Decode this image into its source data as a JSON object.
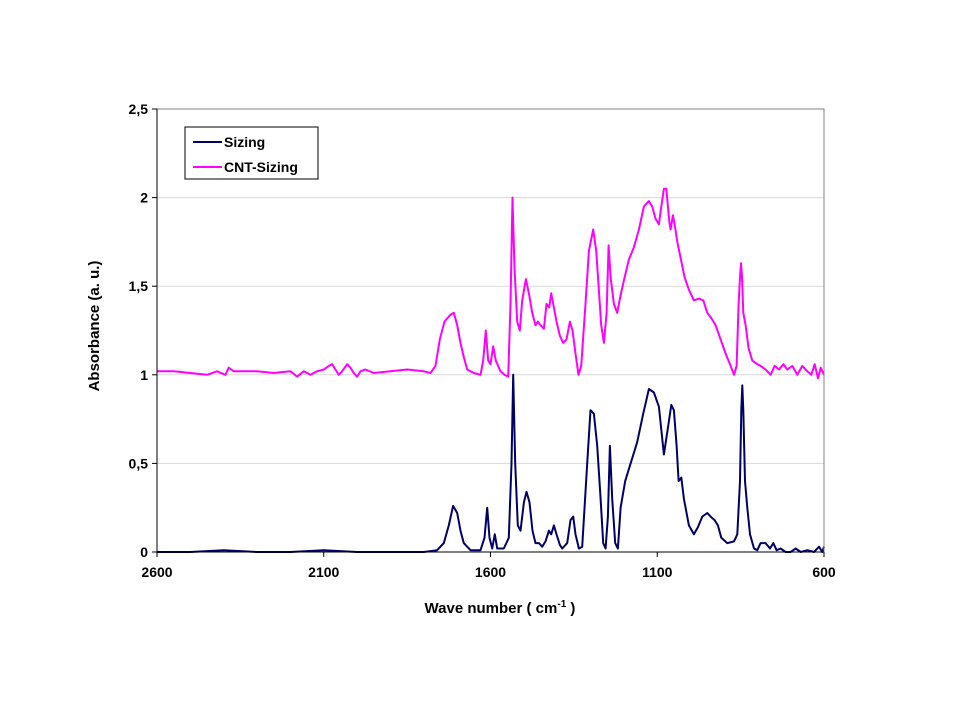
{
  "chart_data": {
    "type": "line",
    "xlabel": "Wave number ( cm-1 )",
    "xlabel_main": "Wave number ( cm",
    "xlabel_sup": "-1",
    "xlabel_end": " )",
    "ylabel": "Absorbance (a. u.)",
    "xlim": [
      2600,
      600
    ],
    "x_reversed": true,
    "ylim": [
      0,
      2.5
    ],
    "x_ticks": [
      2600,
      2100,
      1600,
      1100,
      600
    ],
    "x_tick_labels": [
      "2600",
      "2100",
      "1600",
      "1100",
      "600"
    ],
    "y_ticks": [
      0,
      0.5,
      1,
      1.5,
      2,
      2.5
    ],
    "y_tick_labels": [
      "0",
      "0,5",
      "1",
      "1,5",
      "2",
      "2,5"
    ],
    "grid": "horizontal",
    "legend_position": "top-left",
    "series": [
      {
        "name": "Sizing",
        "color": "#000066",
        "points": [
          [
            2600,
            0.0
          ],
          [
            2500,
            0.0
          ],
          [
            2400,
            0.01
          ],
          [
            2300,
            0.0
          ],
          [
            2200,
            0.0
          ],
          [
            2100,
            0.01
          ],
          [
            2000,
            0.0
          ],
          [
            1900,
            0.0
          ],
          [
            1800,
            0.0
          ],
          [
            1760,
            0.01
          ],
          [
            1740,
            0.05
          ],
          [
            1725,
            0.15
          ],
          [
            1712,
            0.26
          ],
          [
            1700,
            0.22
          ],
          [
            1690,
            0.12
          ],
          [
            1680,
            0.05
          ],
          [
            1660,
            0.01
          ],
          [
            1630,
            0.01
          ],
          [
            1618,
            0.08
          ],
          [
            1610,
            0.25
          ],
          [
            1603,
            0.08
          ],
          [
            1595,
            0.02
          ],
          [
            1587,
            0.1
          ],
          [
            1580,
            0.02
          ],
          [
            1560,
            0.02
          ],
          [
            1545,
            0.08
          ],
          [
            1537,
            0.5
          ],
          [
            1532,
            1.0
          ],
          [
            1526,
            0.5
          ],
          [
            1518,
            0.15
          ],
          [
            1510,
            0.12
          ],
          [
            1500,
            0.28
          ],
          [
            1492,
            0.34
          ],
          [
            1483,
            0.28
          ],
          [
            1474,
            0.12
          ],
          [
            1465,
            0.05
          ],
          [
            1455,
            0.05
          ],
          [
            1445,
            0.03
          ],
          [
            1435,
            0.06
          ],
          [
            1425,
            0.12
          ],
          [
            1418,
            0.1
          ],
          [
            1410,
            0.15
          ],
          [
            1402,
            0.1
          ],
          [
            1392,
            0.04
          ],
          [
            1385,
            0.02
          ],
          [
            1370,
            0.05
          ],
          [
            1360,
            0.18
          ],
          [
            1352,
            0.2
          ],
          [
            1345,
            0.1
          ],
          [
            1335,
            0.02
          ],
          [
            1325,
            0.03
          ],
          [
            1310,
            0.5
          ],
          [
            1300,
            0.8
          ],
          [
            1290,
            0.78
          ],
          [
            1280,
            0.6
          ],
          [
            1270,
            0.3
          ],
          [
            1262,
            0.05
          ],
          [
            1255,
            0.02
          ],
          [
            1248,
            0.2
          ],
          [
            1242,
            0.6
          ],
          [
            1235,
            0.3
          ],
          [
            1226,
            0.05
          ],
          [
            1218,
            0.02
          ],
          [
            1210,
            0.25
          ],
          [
            1196,
            0.4
          ],
          [
            1180,
            0.5
          ],
          [
            1160,
            0.62
          ],
          [
            1142,
            0.78
          ],
          [
            1125,
            0.92
          ],
          [
            1110,
            0.9
          ],
          [
            1095,
            0.82
          ],
          [
            1080,
            0.55
          ],
          [
            1068,
            0.7
          ],
          [
            1058,
            0.83
          ],
          [
            1050,
            0.8
          ],
          [
            1042,
            0.6
          ],
          [
            1036,
            0.4
          ],
          [
            1028,
            0.42
          ],
          [
            1020,
            0.3
          ],
          [
            1005,
            0.15
          ],
          [
            990,
            0.1
          ],
          [
            978,
            0.14
          ],
          [
            965,
            0.2
          ],
          [
            950,
            0.22
          ],
          [
            940,
            0.2
          ],
          [
            928,
            0.18
          ],
          [
            918,
            0.15
          ],
          [
            908,
            0.08
          ],
          [
            890,
            0.05
          ],
          [
            870,
            0.06
          ],
          [
            860,
            0.1
          ],
          [
            852,
            0.4
          ],
          [
            848,
            0.8
          ],
          [
            845,
            0.94
          ],
          [
            842,
            0.8
          ],
          [
            837,
            0.4
          ],
          [
            830,
            0.25
          ],
          [
            822,
            0.1
          ],
          [
            810,
            0.02
          ],
          [
            800,
            0.01
          ],
          [
            790,
            0.05
          ],
          [
            775,
            0.05
          ],
          [
            762,
            0.02
          ],
          [
            752,
            0.05
          ],
          [
            742,
            0.01
          ],
          [
            730,
            0.02
          ],
          [
            715,
            0.0
          ],
          [
            700,
            0.0
          ],
          [
            685,
            0.02
          ],
          [
            670,
            0.0
          ],
          [
            650,
            0.01
          ],
          [
            630,
            0.0
          ],
          [
            615,
            0.03
          ],
          [
            605,
            0.0
          ],
          [
            600,
            0.03
          ]
        ]
      },
      {
        "name": "CNT-Sizing",
        "color": "#ff00ff",
        "points": [
          [
            2600,
            1.02
          ],
          [
            2550,
            1.02
          ],
          [
            2500,
            1.01
          ],
          [
            2450,
            1.0
          ],
          [
            2420,
            1.02
          ],
          [
            2395,
            1.0
          ],
          [
            2385,
            1.04
          ],
          [
            2370,
            1.02
          ],
          [
            2300,
            1.02
          ],
          [
            2250,
            1.01
          ],
          [
            2200,
            1.02
          ],
          [
            2180,
            0.99
          ],
          [
            2160,
            1.02
          ],
          [
            2140,
            1.0
          ],
          [
            2120,
            1.02
          ],
          [
            2100,
            1.03
          ],
          [
            2085,
            1.05
          ],
          [
            2075,
            1.06
          ],
          [
            2065,
            1.03
          ],
          [
            2055,
            1.0
          ],
          [
            2045,
            1.02
          ],
          [
            2030,
            1.06
          ],
          [
            2020,
            1.04
          ],
          [
            2010,
            1.01
          ],
          [
            2000,
            0.99
          ],
          [
            1990,
            1.02
          ],
          [
            1975,
            1.03
          ],
          [
            1950,
            1.01
          ],
          [
            1900,
            1.02
          ],
          [
            1850,
            1.03
          ],
          [
            1800,
            1.02
          ],
          [
            1780,
            1.01
          ],
          [
            1765,
            1.05
          ],
          [
            1752,
            1.2
          ],
          [
            1738,
            1.3
          ],
          [
            1720,
            1.34
          ],
          [
            1710,
            1.35
          ],
          [
            1700,
            1.28
          ],
          [
            1690,
            1.18
          ],
          [
            1680,
            1.1
          ],
          [
            1670,
            1.03
          ],
          [
            1650,
            1.01
          ],
          [
            1630,
            1.0
          ],
          [
            1622,
            1.08
          ],
          [
            1614,
            1.25
          ],
          [
            1607,
            1.08
          ],
          [
            1600,
            1.06
          ],
          [
            1592,
            1.16
          ],
          [
            1584,
            1.08
          ],
          [
            1570,
            1.02
          ],
          [
            1558,
            1.0
          ],
          [
            1547,
            0.99
          ],
          [
            1540,
            1.4
          ],
          [
            1534,
            2.0
          ],
          [
            1528,
            1.6
          ],
          [
            1520,
            1.3
          ],
          [
            1512,
            1.25
          ],
          [
            1505,
            1.42
          ],
          [
            1494,
            1.54
          ],
          [
            1484,
            1.45
          ],
          [
            1475,
            1.35
          ],
          [
            1465,
            1.28
          ],
          [
            1458,
            1.3
          ],
          [
            1450,
            1.28
          ],
          [
            1440,
            1.26
          ],
          [
            1432,
            1.4
          ],
          [
            1424,
            1.38
          ],
          [
            1418,
            1.46
          ],
          [
            1410,
            1.38
          ],
          [
            1402,
            1.3
          ],
          [
            1392,
            1.22
          ],
          [
            1382,
            1.18
          ],
          [
            1372,
            1.2
          ],
          [
            1362,
            1.3
          ],
          [
            1354,
            1.25
          ],
          [
            1345,
            1.12
          ],
          [
            1336,
            1.0
          ],
          [
            1328,
            1.05
          ],
          [
            1315,
            1.4
          ],
          [
            1305,
            1.7
          ],
          [
            1292,
            1.82
          ],
          [
            1283,
            1.7
          ],
          [
            1276,
            1.5
          ],
          [
            1268,
            1.28
          ],
          [
            1260,
            1.18
          ],
          [
            1252,
            1.35
          ],
          [
            1246,
            1.73
          ],
          [
            1240,
            1.55
          ],
          [
            1230,
            1.4
          ],
          [
            1220,
            1.35
          ],
          [
            1210,
            1.45
          ],
          [
            1198,
            1.55
          ],
          [
            1185,
            1.65
          ],
          [
            1170,
            1.72
          ],
          [
            1155,
            1.82
          ],
          [
            1140,
            1.95
          ],
          [
            1125,
            1.98
          ],
          [
            1115,
            1.95
          ],
          [
            1105,
            1.88
          ],
          [
            1095,
            1.85
          ],
          [
            1088,
            1.95
          ],
          [
            1080,
            2.05
          ],
          [
            1073,
            2.05
          ],
          [
            1068,
            1.95
          ],
          [
            1063,
            1.85
          ],
          [
            1060,
            1.82
          ],
          [
            1053,
            1.9
          ],
          [
            1048,
            1.85
          ],
          [
            1040,
            1.75
          ],
          [
            1030,
            1.66
          ],
          [
            1018,
            1.55
          ],
          [
            1005,
            1.48
          ],
          [
            990,
            1.42
          ],
          [
            975,
            1.43
          ],
          [
            962,
            1.42
          ],
          [
            950,
            1.35
          ],
          [
            938,
            1.32
          ],
          [
            925,
            1.28
          ],
          [
            910,
            1.2
          ],
          [
            895,
            1.12
          ],
          [
            882,
            1.06
          ],
          [
            870,
            1.0
          ],
          [
            862,
            1.05
          ],
          [
            856,
            1.4
          ],
          [
            852,
            1.55
          ],
          [
            849,
            1.63
          ],
          [
            846,
            1.55
          ],
          [
            842,
            1.35
          ],
          [
            835,
            1.28
          ],
          [
            826,
            1.15
          ],
          [
            815,
            1.08
          ],
          [
            800,
            1.06
          ],
          [
            790,
            1.05
          ],
          [
            775,
            1.03
          ],
          [
            760,
            1.0
          ],
          [
            748,
            1.05
          ],
          [
            735,
            1.03
          ],
          [
            722,
            1.06
          ],
          [
            710,
            1.03
          ],
          [
            695,
            1.05
          ],
          [
            680,
            1.0
          ],
          [
            665,
            1.05
          ],
          [
            650,
            1.02
          ],
          [
            638,
            1.0
          ],
          [
            628,
            1.06
          ],
          [
            618,
            0.98
          ],
          [
            610,
            1.04
          ],
          [
            600,
            1.0
          ]
        ]
      }
    ]
  }
}
